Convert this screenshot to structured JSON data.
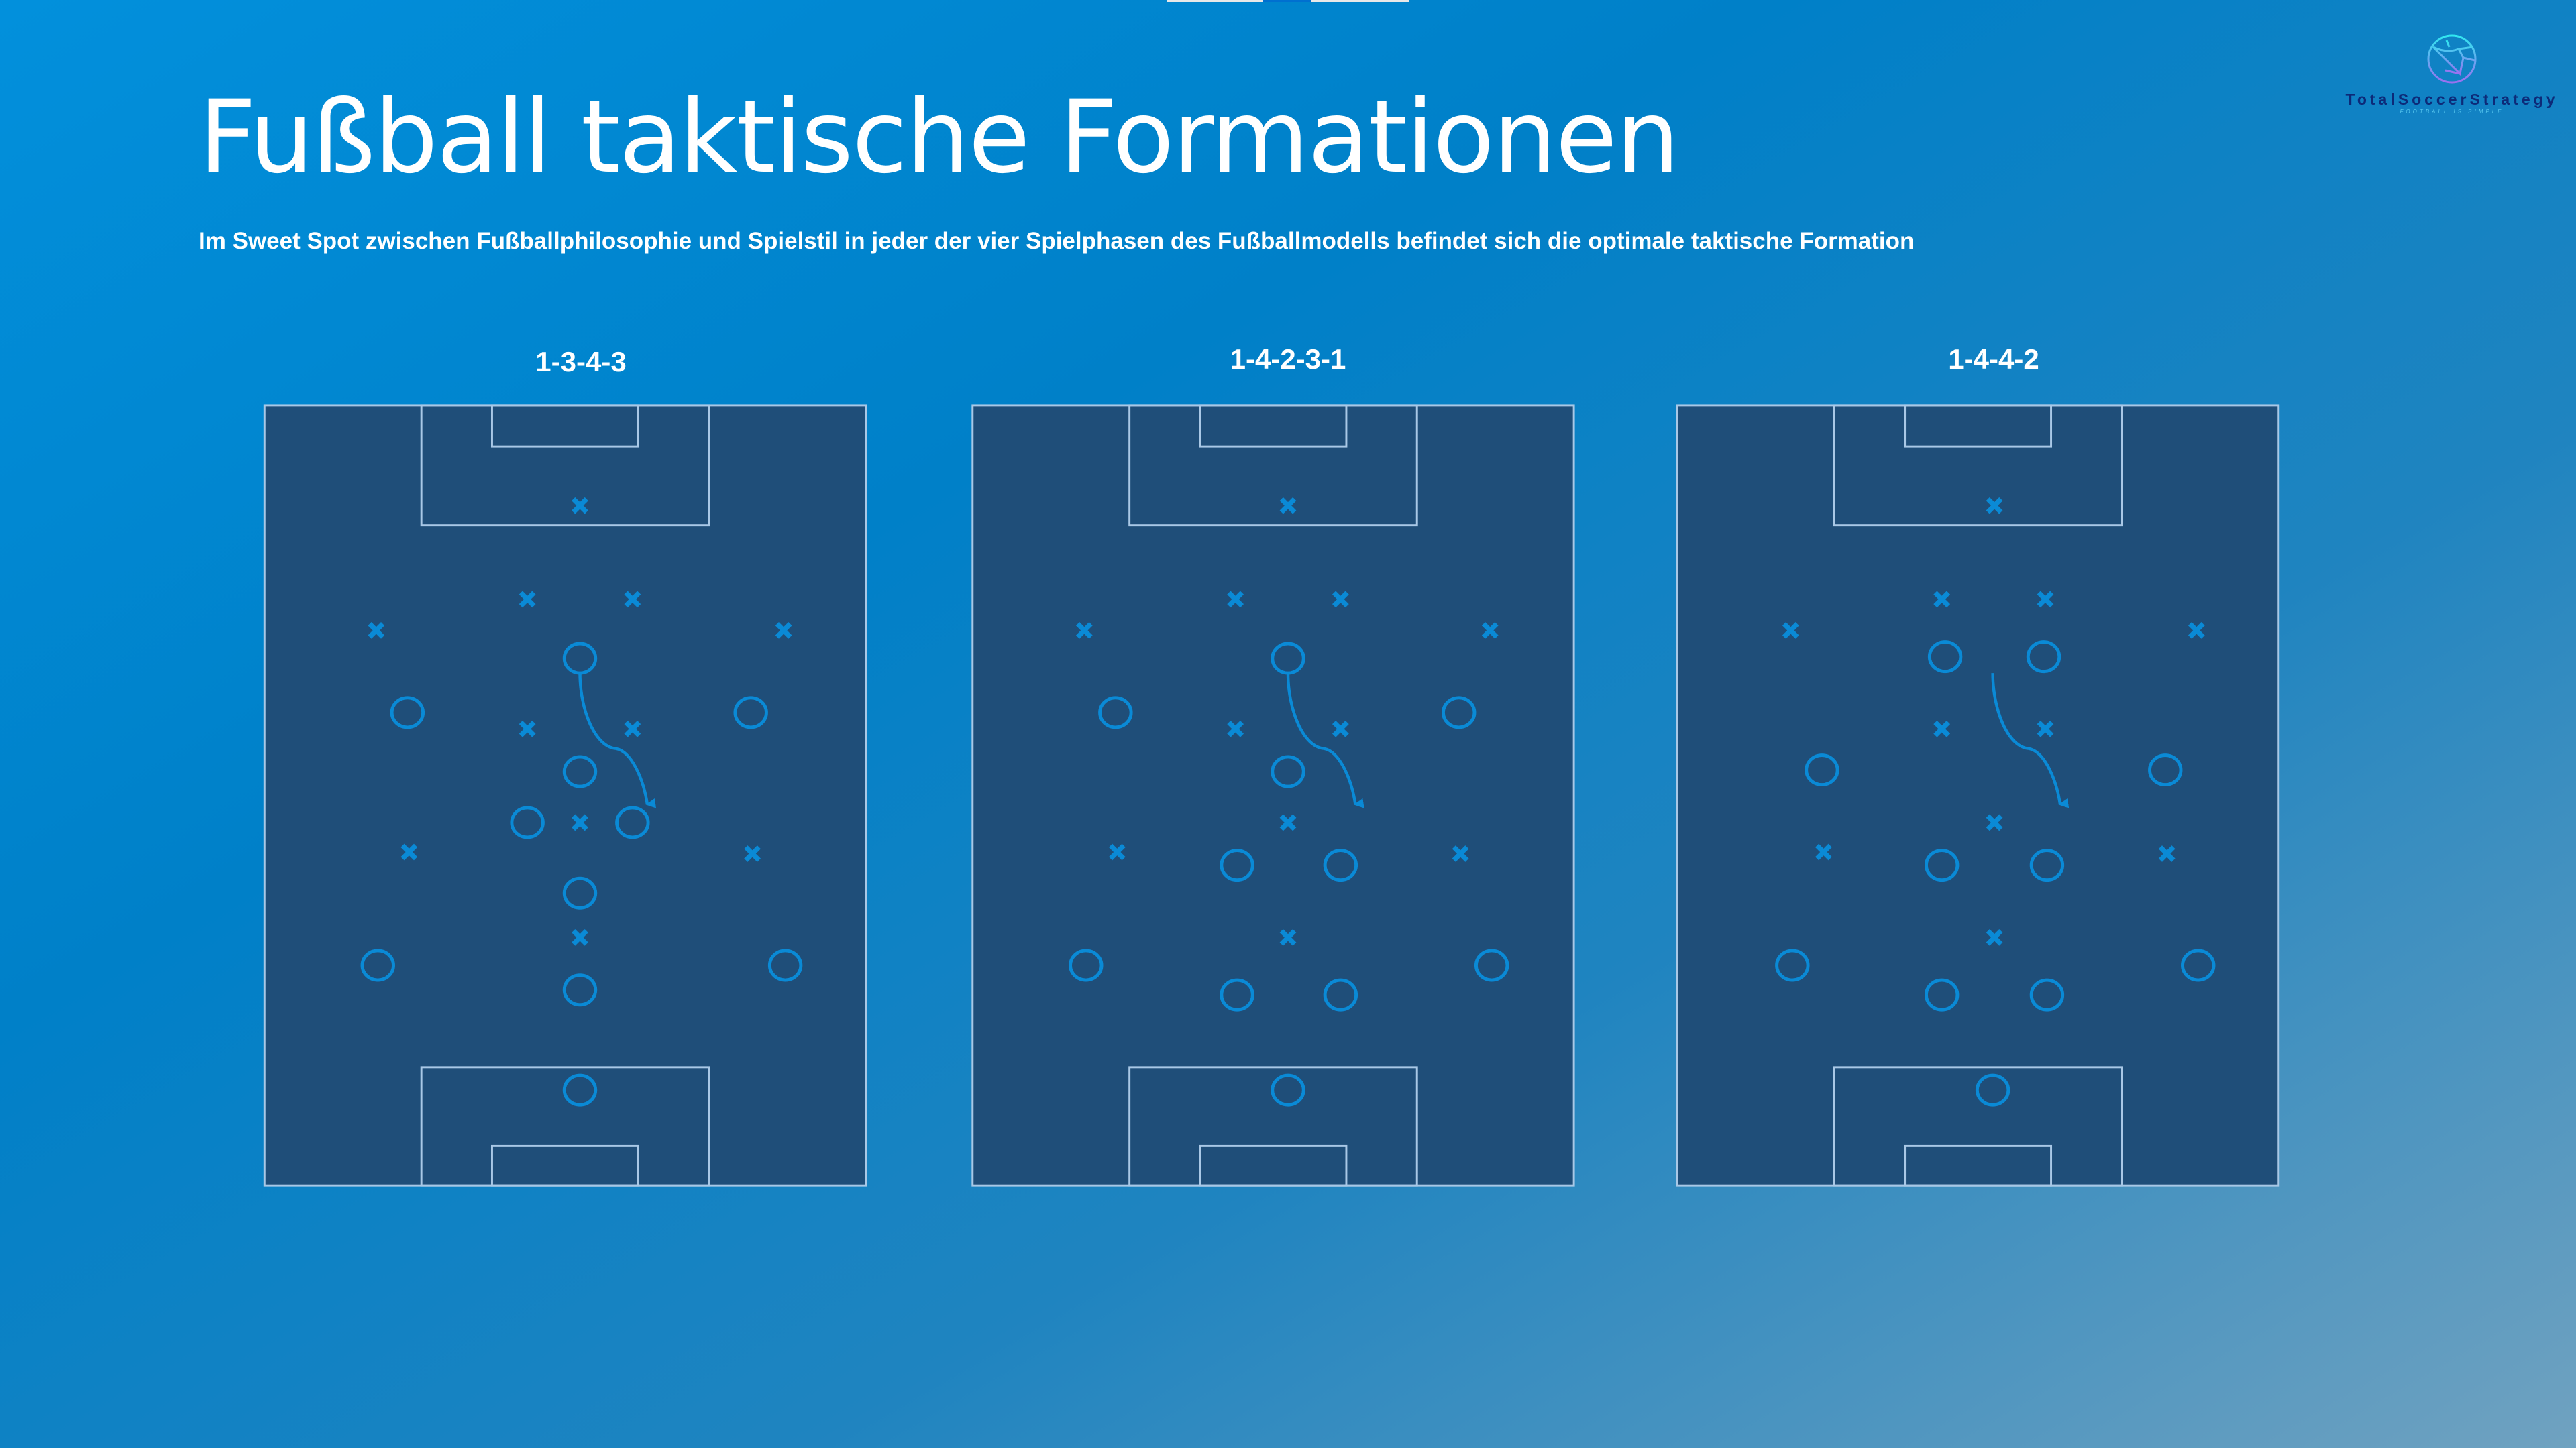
{
  "title": "Fußball taktische Formationen",
  "subtitle": "Im Sweet Spot zwischen Fußballphilosophie und Spielstil in jeder der vier Spielphasen des Fußballmodells befindet sich die optimale taktische Formation",
  "logo": {
    "name": "TotalSoccerStrategy",
    "tagline": "FOOTBALL IS SIMPLE"
  },
  "formations": [
    {
      "label": "1-3-4-3"
    },
    {
      "label": "1-4-2-3-1"
    },
    {
      "label": "1-4-4-2"
    }
  ],
  "colors": {
    "pitch": "#1f4e79",
    "lines": "#a9c8e6",
    "markers": "#0a8ad6"
  },
  "icons": {
    "opponent": "cross-marker-icon",
    "team": "circle-marker-icon",
    "movement": "arrow-icon",
    "logo": "soccer-ball-icon"
  }
}
